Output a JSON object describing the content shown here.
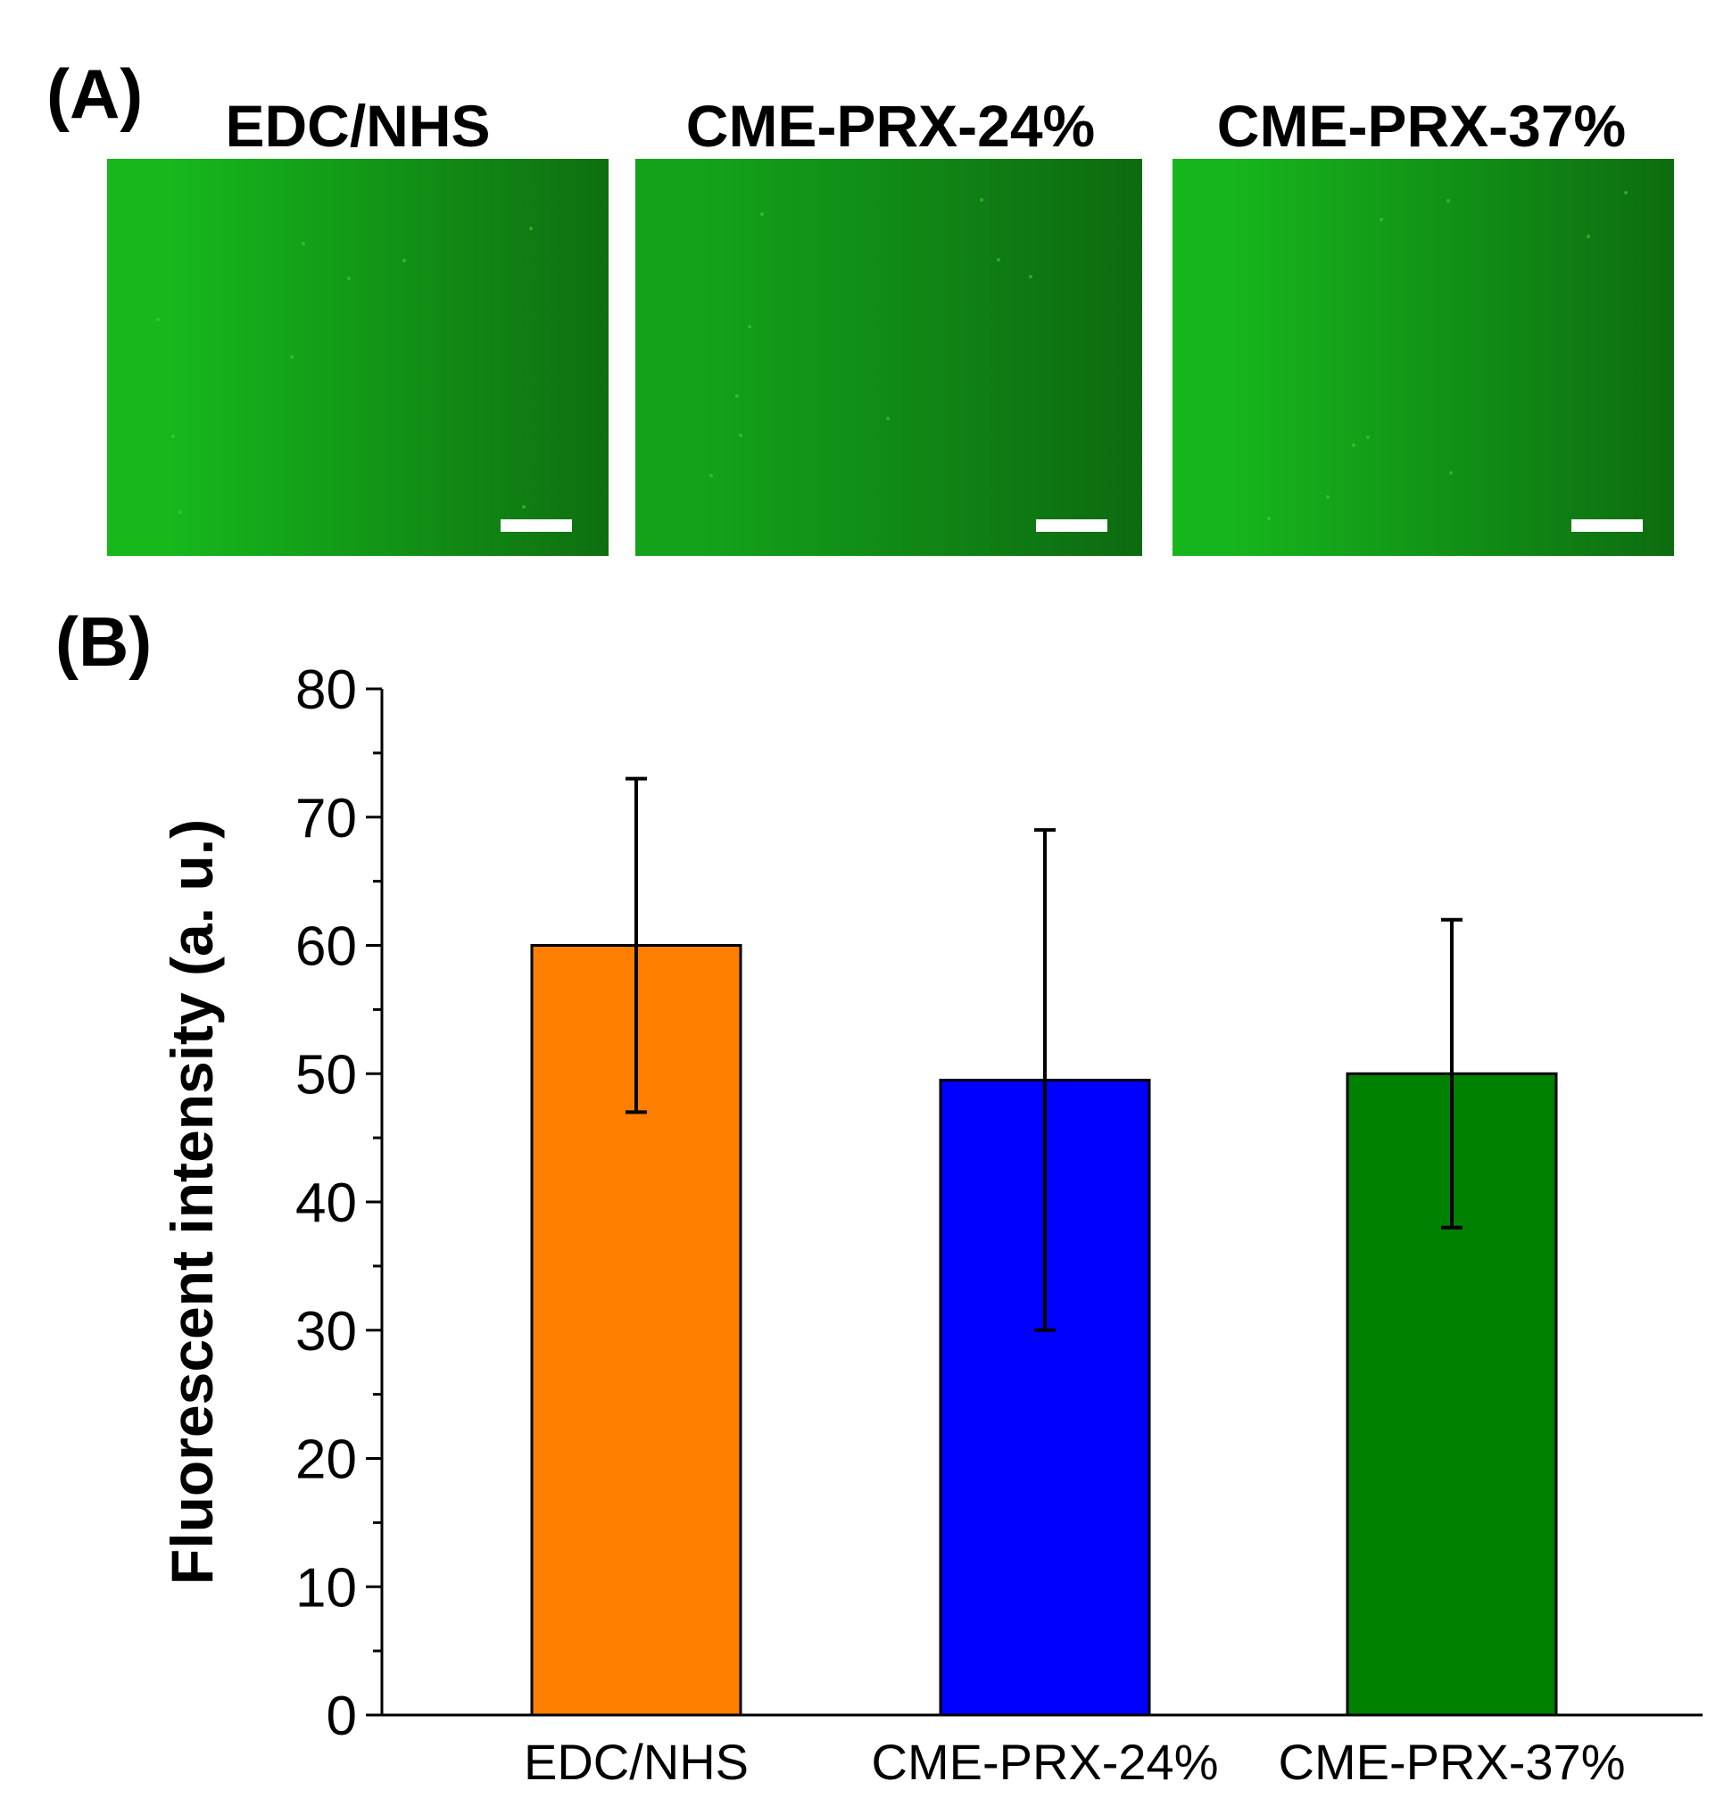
{
  "panel_a": {
    "label": "(A)",
    "images": [
      {
        "title": "EDC/NHS",
        "color_bright": "#16b81c",
        "color_dark": "#0e6f10"
      },
      {
        "title": "CME-PRX-24%",
        "color_bright": "#13a31a",
        "color_dark": "#0d6a10"
      },
      {
        "title": "CME-PRX-37%",
        "color_bright": "#16b51c",
        "color_dark": "#0d6c10"
      }
    ]
  },
  "panel_b": {
    "label": "(B)"
  },
  "chart_data": {
    "type": "bar",
    "title": "",
    "xlabel": "",
    "ylabel": "Fluorescent intensity (a. u.)",
    "ylim": [
      0,
      80
    ],
    "yticks": [
      0,
      10,
      20,
      30,
      40,
      50,
      60,
      70,
      80
    ],
    "categories": [
      "EDC/NHS",
      "CME-PRX-24%",
      "CME-PRX-37%"
    ],
    "values": [
      60,
      49.5,
      50
    ],
    "errors_upper": [
      73,
      69,
      62
    ],
    "errors_lower": [
      47,
      30,
      38
    ],
    "colors": [
      "#ff8000",
      "#0000ff",
      "#008000"
    ],
    "grid": false
  }
}
